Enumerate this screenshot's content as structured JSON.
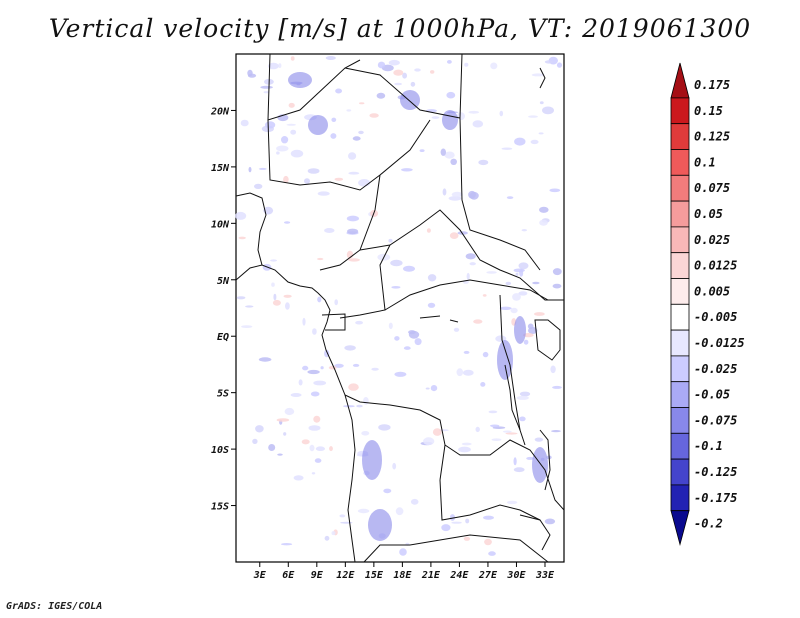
{
  "chart_data": {
    "type": "heatmap",
    "title": "Vertical velocity [m/s] at 1000hPa, VT: 2019061300",
    "x_ticks": [
      "3E",
      "6E",
      "9E",
      "12E",
      "15E",
      "18E",
      "21E",
      "24E",
      "27E",
      "30E",
      "33E"
    ],
    "y_ticks": [
      "20N",
      "15N",
      "10N",
      "5N",
      "EQ",
      "5S",
      "10S",
      "15S"
    ],
    "xlim": [
      0.5,
      35
    ],
    "ylim": [
      -20,
      25
    ],
    "colorbar": {
      "labels": [
        "0.175",
        "0.15",
        "0.125",
        "0.1",
        "0.075",
        "0.05",
        "0.025",
        "0.0125",
        "0.005",
        "-0.005",
        "-0.0125",
        "-0.025",
        "-0.05",
        "-0.075",
        "-0.1",
        "-0.125",
        "-0.175",
        "-0.2"
      ],
      "colors": [
        "#a50f15",
        "#cb181d",
        "#e03b3b",
        "#ef5a5a",
        "#f27c7c",
        "#f59c9c",
        "#f8b8b8",
        "#fbd6d6",
        "#fdecec",
        "#ffffff",
        "#e8e8ff",
        "#ccccff",
        "#aaaaf5",
        "#8888ea",
        "#6666dd",
        "#4444cc",
        "#2222b3",
        "#0a0a8f"
      ]
    },
    "credit": "GrADS: IGES/COLA"
  }
}
